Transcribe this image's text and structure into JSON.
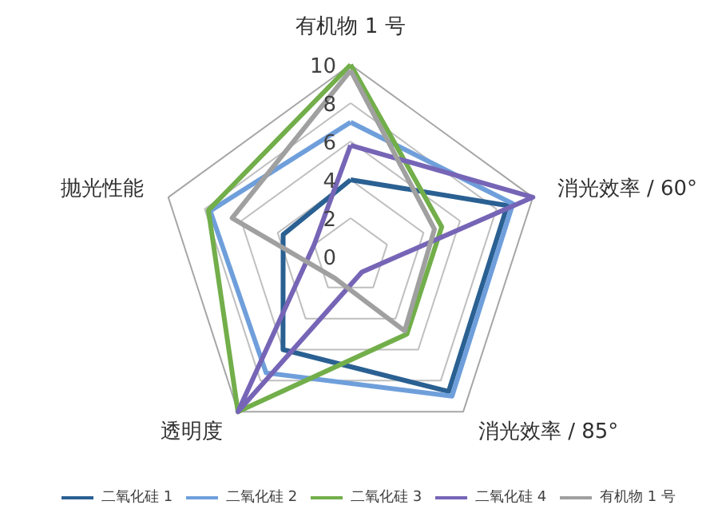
{
  "chart_data": {
    "type": "radar",
    "categories": [
      "有机物 1 号",
      "消光效率 / 60°",
      "消光效率 / 85°",
      "透明度",
      "抛光性能"
    ],
    "series": [
      {
        "name": "二氧化硅 1",
        "color": "#2a6092",
        "values": [
          4,
          8.6,
          8.7,
          6,
          3.7
        ]
      },
      {
        "name": "二氧化硅 2",
        "color": "#6f9fdb",
        "values": [
          7,
          8.9,
          9,
          7.5,
          7.7
        ]
      },
      {
        "name": "二氧化硅 3",
        "color": "#72ae4a",
        "values": [
          10,
          5,
          5,
          10,
          7.8
        ]
      },
      {
        "name": "二氧化硅 4",
        "color": "#7665b6",
        "values": [
          5.8,
          10,
          1,
          10,
          2
        ]
      },
      {
        "name": "有机物 1 号",
        "color": "#a0a0a0",
        "values": [
          9.7,
          4.6,
          4.8,
          1.4,
          6.5
        ]
      }
    ],
    "ylim": [
      0,
      10
    ],
    "yticks": [
      0,
      2,
      4,
      6,
      8,
      10
    ],
    "grid": true,
    "legend": "bottom"
  }
}
